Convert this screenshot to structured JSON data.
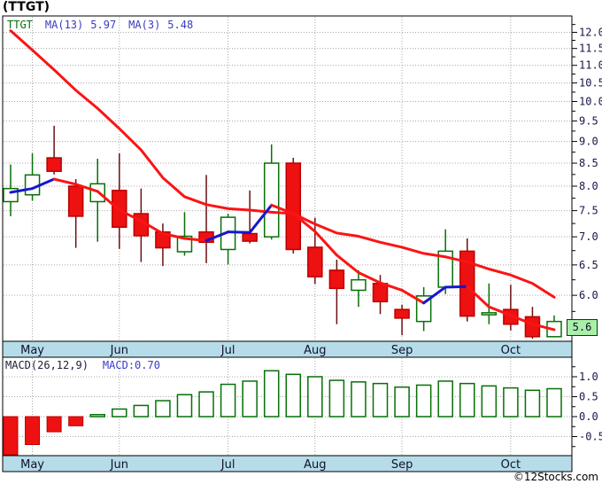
{
  "window": {
    "title": "(TTGT)"
  },
  "chart_data": [
    {
      "type": "candlestick",
      "title": "(TTGT)",
      "legend": {
        "symbol": "TTGT",
        "ma13_label": "MA(13)",
        "ma13_value": "5.97",
        "ma3_label": "MA(3)",
        "ma3_value": "5.48"
      },
      "last_price_label": "5.6",
      "x_axis": {
        "months": [
          "May",
          "Jun",
          "Jul",
          "Aug",
          "Sep",
          "Oct"
        ],
        "month_candle_index": [
          1,
          5,
          10,
          14,
          18,
          23
        ]
      },
      "y_axis": {
        "scale": "log",
        "labeled_ticks": [
          12.0,
          11.5,
          11.0,
          10.5,
          10.0,
          9.5,
          9.0,
          8.5,
          8.0,
          7.5,
          7.0,
          6.5,
          6.0
        ],
        "minor_tick_step": 0.25,
        "min": 5.35,
        "max": 12.3
      },
      "candles": [
        {
          "o": 7.68,
          "h": 8.47,
          "l": 7.39,
          "c": 7.95,
          "dir": "up"
        },
        {
          "o": 7.82,
          "h": 8.72,
          "l": 7.7,
          "c": 8.24,
          "dir": "up"
        },
        {
          "o": 8.62,
          "h": 9.38,
          "l": 8.25,
          "c": 8.32,
          "dir": "down"
        },
        {
          "o": 8.0,
          "h": 8.15,
          "l": 6.8,
          "c": 7.39,
          "dir": "down"
        },
        {
          "o": 7.68,
          "h": 8.6,
          "l": 6.91,
          "c": 8.05,
          "dir": "up"
        },
        {
          "o": 7.91,
          "h": 8.72,
          "l": 6.78,
          "c": 7.18,
          "dir": "down"
        },
        {
          "o": 7.44,
          "h": 7.95,
          "l": 6.55,
          "c": 7.02,
          "dir": "down"
        },
        {
          "o": 7.09,
          "h": 7.25,
          "l": 6.48,
          "c": 6.8,
          "dir": "down"
        },
        {
          "o": 6.73,
          "h": 7.47,
          "l": 6.66,
          "c": 7.01,
          "dir": "up"
        },
        {
          "o": 7.09,
          "h": 8.24,
          "l": 6.53,
          "c": 6.9,
          "dir": "down"
        },
        {
          "o": 6.77,
          "h": 7.44,
          "l": 6.51,
          "c": 7.37,
          "dir": "up"
        },
        {
          "o": 7.06,
          "h": 7.91,
          "l": 6.88,
          "c": 6.92,
          "dir": "down"
        },
        {
          "o": 7.0,
          "h": 8.93,
          "l": 6.95,
          "c": 8.5,
          "dir": "up"
        },
        {
          "o": 8.5,
          "h": 8.62,
          "l": 6.7,
          "c": 6.77,
          "dir": "down"
        },
        {
          "o": 6.81,
          "h": 7.36,
          "l": 6.18,
          "c": 6.3,
          "dir": "down"
        },
        {
          "o": 6.41,
          "h": 6.59,
          "l": 5.56,
          "c": 6.11,
          "dir": "down"
        },
        {
          "o": 6.08,
          "h": 6.41,
          "l": 5.82,
          "c": 6.25,
          "dir": "up"
        },
        {
          "o": 6.19,
          "h": 6.33,
          "l": 5.71,
          "c": 5.9,
          "dir": "down"
        },
        {
          "o": 5.78,
          "h": 5.85,
          "l": 5.4,
          "c": 5.65,
          "dir": "down"
        },
        {
          "o": 5.6,
          "h": 6.13,
          "l": 5.46,
          "c": 5.99,
          "dir": "up"
        },
        {
          "o": 6.13,
          "h": 7.14,
          "l": 6.02,
          "c": 6.74,
          "dir": "up"
        },
        {
          "o": 6.74,
          "h": 6.97,
          "l": 5.6,
          "c": 5.68,
          "dir": "down"
        },
        {
          "o": 5.7,
          "h": 6.19,
          "l": 5.56,
          "c": 5.73,
          "dir": "up"
        },
        {
          "o": 5.78,
          "h": 6.17,
          "l": 5.47,
          "c": 5.56,
          "dir": "down"
        },
        {
          "o": 5.67,
          "h": 5.82,
          "l": 5.35,
          "c": 5.38,
          "dir": "down"
        },
        {
          "o": 5.38,
          "h": 5.69,
          "l": 5.37,
          "c": 5.6,
          "dir": "up"
        }
      ],
      "ma13": [
        12.05,
        11.45,
        10.87,
        10.3,
        9.82,
        9.31,
        8.8,
        8.18,
        7.78,
        7.62,
        7.54,
        7.51,
        7.47,
        7.44,
        7.24,
        7.07,
        7.01,
        6.9,
        6.81,
        6.7,
        6.64,
        6.55,
        6.43,
        6.33,
        6.19,
        5.97
      ],
      "ma3": [
        7.87,
        7.95,
        8.15,
        8.04,
        7.89,
        7.51,
        7.3,
        7.06,
        6.97,
        6.93,
        7.09,
        7.08,
        7.61,
        7.44,
        7.1,
        6.67,
        6.37,
        6.2,
        6.08,
        5.88,
        6.13,
        6.14,
        5.82,
        5.69,
        5.56,
        5.48
      ],
      "ma3_up_segments": [
        0,
        1,
        9,
        10,
        11,
        19,
        20
      ],
      "colors": {
        "up": "#067006",
        "down": "#ee1111",
        "down_border": "#bb0000",
        "down_wick": "#6b0f10",
        "ma13": "#fb1414",
        "ma3_up": "#1616cf",
        "ma3_down": "#fb1414",
        "band_bg": "#b5dce8",
        "grid": "#a8a8a8",
        "badge_bg": "#a9efa9"
      }
    },
    {
      "type": "bar",
      "label": "MACD(26,12,9)",
      "value_label": "MACD:0.70",
      "y_axis": {
        "labeled_ticks": [
          1.0,
          0.5,
          0.0,
          -0.5
        ],
        "minor_tick_step": 0.25
      },
      "values": [
        -1.05,
        -0.7,
        -0.38,
        -0.23,
        0.05,
        0.19,
        0.28,
        0.4,
        0.55,
        0.62,
        0.81,
        0.89,
        1.15,
        1.06,
        1.0,
        0.91,
        0.87,
        0.83,
        0.74,
        0.79,
        0.89,
        0.83,
        0.77,
        0.72,
        0.66,
        0.7
      ],
      "colors": {
        "positive": "#067006",
        "negative": "#ee1111",
        "negative_border": "#bb0000"
      }
    }
  ],
  "footer": {
    "copyright": "©12Stocks.com"
  }
}
